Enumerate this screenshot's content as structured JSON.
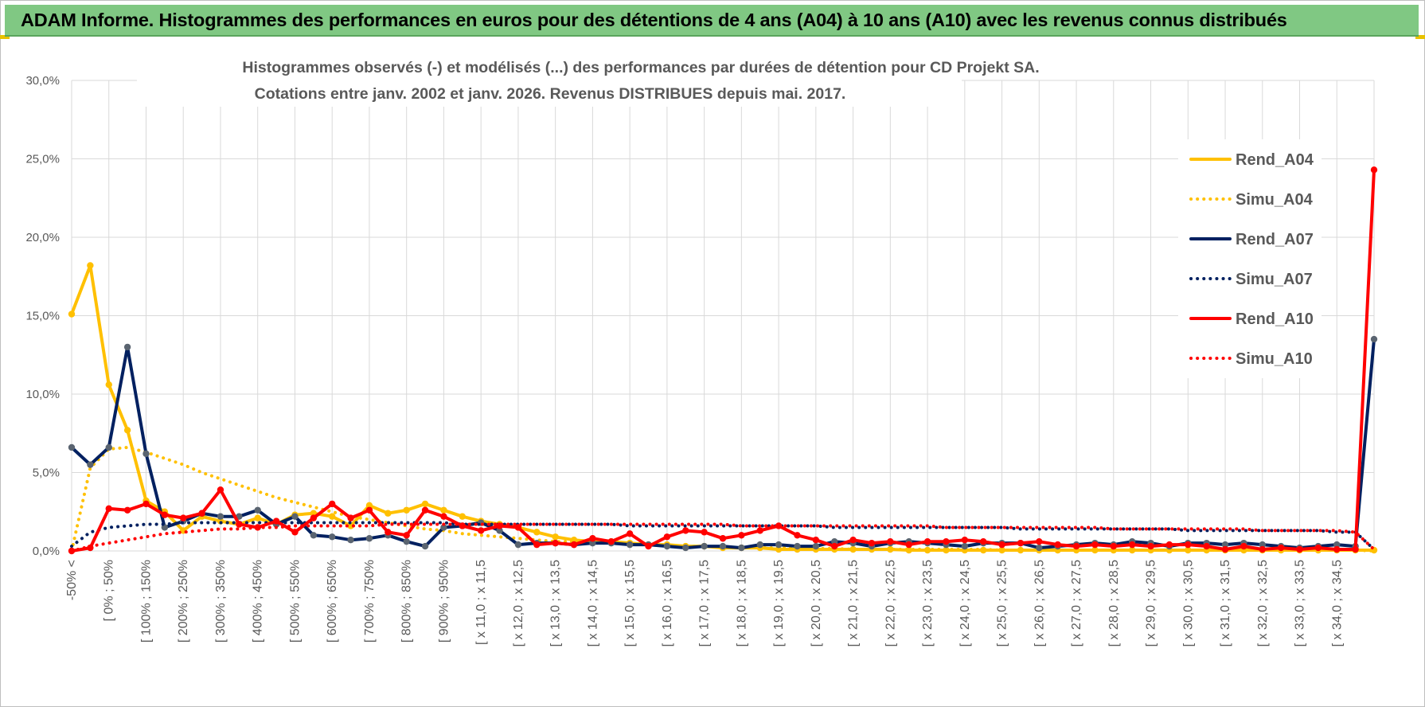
{
  "header": {
    "title": "ADAM Informe. Histogrammes des performances en euros pour des détentions de 4 ans (A04) à 10 ans (A10) avec les revenus connus distribués"
  },
  "colors": {
    "A04": "#FFC000",
    "A07": "#002060",
    "A07_marker": "#5A6470",
    "A10": "#FF0000",
    "grid": "#d9d9d9",
    "axis_text": "#595959"
  },
  "chart_data": {
    "type": "line",
    "title_line1": "Histogrammes observés (-) et modélisés (...) des performances par durées de détention pour CD Projekt SA.",
    "title_line2": "Cotations entre janv. 2002 et janv. 2026. Revenus DISTRIBUES depuis mai. 2017.",
    "xlabel": "",
    "ylabel": "",
    "ylim": [
      0,
      30
    ],
    "yticks": [
      "0,0%",
      "5,0%",
      "10,0%",
      "15,0%",
      "20,0%",
      "25,0%",
      "30,0%"
    ],
    "grid": true,
    "legend_position": "right",
    "x_tick_labels": [
      "-50% <",
      "[ 0% ; 50%",
      "[ 100% ; 150%",
      "[ 200% ; 250%",
      "[ 300% ; 350%",
      "[ 400% ; 450%",
      "[ 500% ; 550%",
      "[ 600% ; 650%",
      "[ 700% ; 750%",
      "[ 800% ; 850%",
      "[ 900% ; 950%",
      "[ x 11,0 ; x 11,5",
      "[ x 12,0 ; x 12,5",
      "[ x 13,0 ; x 13,5",
      "[ x 14,0 ; x 14,5",
      "[ x 15,0 ; x 15,5",
      "[ x 16,0 ; x 16,5",
      "[ x 17,0 ; x 17,5",
      "[ x 18,0 ; x 18,5",
      "[ x 19,0 ; x 19,5",
      "[ x 20,0 ; x 20,5",
      "[ x 21,0 ; x 21,5",
      "[ x 22,0 ; x 22,5",
      "[ x 23,0 ; x 23,5",
      "[ x 24,0 ; x 24,5",
      "[ x 25,0 ; x 25,5",
      "[ x 26,0 ; x 26,5",
      "[ x 27,0 ; x 27,5",
      "[ x 28,0 ; x 28,5",
      "[ x 29,0 ; x 29,5",
      "[ x 30,0 ; x 30,5",
      "[ x 31,0 ; x 31,5",
      "[ x 32,0 ; x 32,5",
      "[ x 33,0 ; x 33,5",
      "[ x 34,0 ; x 34,5"
    ],
    "series": [
      {
        "name": "Rend_A04",
        "style": "solid",
        "color_key": "A04",
        "values": [
          15.1,
          18.2,
          10.6,
          7.7,
          3.2,
          2.5,
          1.3,
          2.2,
          1.9,
          1.7,
          2.1,
          1.7,
          2.3,
          2.4,
          2.2,
          1.6,
          2.9,
          2.4,
          2.6,
          3.0,
          2.6,
          2.2,
          1.9,
          1.7,
          1.5,
          1.2,
          0.9,
          0.7,
          0.6,
          0.6,
          0.5,
          0.4,
          0.4,
          0.3,
          0.3,
          0.2,
          0.2,
          0.2,
          0.1,
          0.1,
          0.1,
          0.1,
          0.1,
          0.1,
          0.1,
          0.05,
          0.05,
          0.05,
          0.05,
          0.05,
          0.05,
          0.05,
          0.05,
          0.05,
          0.05,
          0.05,
          0.05,
          0.05,
          0.05,
          0.05,
          0.05,
          0.05,
          0.05,
          0.05,
          0.05,
          0.05,
          0.05,
          0.05,
          0.05,
          0.05,
          0.05
        ]
      },
      {
        "name": "Simu_A04",
        "style": "dotted",
        "color_key": "A04",
        "values": [
          0.0,
          5.3,
          6.5,
          6.6,
          6.3,
          5.9,
          5.5,
          5.0,
          4.6,
          4.2,
          3.8,
          3.4,
          3.1,
          2.8,
          2.5,
          2.2,
          2.0,
          1.8,
          1.6,
          1.4,
          1.3,
          1.1,
          1.0,
          0.9,
          0.8,
          0.7,
          0.6,
          0.6,
          0.5,
          0.5,
          0.4,
          0.4,
          0.3,
          0.3,
          0.3,
          0.2,
          0.2,
          0.2,
          0.2,
          0.2,
          0.15,
          0.15,
          0.1,
          0.1,
          0.1,
          0.1,
          0.1,
          0.1,
          0.1,
          0.1,
          0.05,
          0.05,
          0.05,
          0.05,
          0.05,
          0.05,
          0.05,
          0.05,
          0.05,
          0.05,
          0.05,
          0.05,
          0.05,
          0.05,
          0.05,
          0.05,
          0.05,
          0.05,
          0.05,
          0.05,
          0.0
        ]
      },
      {
        "name": "Rend_A07",
        "style": "solid",
        "color_key": "A07",
        "values": [
          6.6,
          5.5,
          6.6,
          13.0,
          6.2,
          1.5,
          1.9,
          2.4,
          2.2,
          2.2,
          2.6,
          1.7,
          2.2,
          1.0,
          0.9,
          0.7,
          0.8,
          1.0,
          0.6,
          0.3,
          1.5,
          1.6,
          1.8,
          1.3,
          0.4,
          0.5,
          0.5,
          0.4,
          0.5,
          0.5,
          0.4,
          0.4,
          0.3,
          0.2,
          0.3,
          0.3,
          0.2,
          0.4,
          0.4,
          0.3,
          0.3,
          0.6,
          0.5,
          0.3,
          0.5,
          0.6,
          0.5,
          0.4,
          0.3,
          0.5,
          0.5,
          0.5,
          0.2,
          0.3,
          0.4,
          0.5,
          0.4,
          0.6,
          0.5,
          0.3,
          0.5,
          0.5,
          0.4,
          0.5,
          0.4,
          0.3,
          0.2,
          0.3,
          0.4,
          0.3,
          13.5
        ]
      },
      {
        "name": "Simu_A07",
        "style": "dotted",
        "color_key": "A07",
        "values": [
          0.3,
          1.2,
          1.5,
          1.6,
          1.7,
          1.7,
          1.8,
          1.8,
          1.8,
          1.8,
          1.8,
          1.8,
          1.8,
          1.8,
          1.8,
          1.8,
          1.8,
          1.8,
          1.8,
          1.8,
          1.8,
          1.7,
          1.7,
          1.7,
          1.7,
          1.7,
          1.7,
          1.7,
          1.7,
          1.7,
          1.6,
          1.6,
          1.6,
          1.6,
          1.6,
          1.6,
          1.6,
          1.6,
          1.6,
          1.6,
          1.6,
          1.5,
          1.5,
          1.5,
          1.5,
          1.5,
          1.5,
          1.5,
          1.5,
          1.5,
          1.5,
          1.4,
          1.4,
          1.4,
          1.4,
          1.4,
          1.4,
          1.4,
          1.4,
          1.4,
          1.3,
          1.3,
          1.3,
          1.3,
          1.3,
          1.3,
          1.3,
          1.3,
          1.2,
          1.2,
          0.1
        ]
      },
      {
        "name": "Rend_A10",
        "style": "solid",
        "color_key": "A10",
        "values": [
          0.0,
          0.2,
          2.7,
          2.6,
          3.0,
          2.3,
          2.1,
          2.4,
          3.9,
          1.7,
          1.5,
          1.9,
          1.2,
          2.1,
          3.0,
          2.1,
          2.6,
          1.2,
          1.0,
          2.6,
          2.2,
          1.6,
          1.3,
          1.6,
          1.5,
          0.4,
          0.5,
          0.4,
          0.8,
          0.6,
          1.1,
          0.3,
          0.9,
          1.3,
          1.2,
          0.8,
          1.0,
          1.3,
          1.6,
          1.0,
          0.7,
          0.3,
          0.7,
          0.5,
          0.6,
          0.4,
          0.6,
          0.6,
          0.7,
          0.6,
          0.4,
          0.5,
          0.6,
          0.4,
          0.3,
          0.4,
          0.3,
          0.4,
          0.3,
          0.4,
          0.4,
          0.3,
          0.1,
          0.3,
          0.1,
          0.2,
          0.1,
          0.2,
          0.1,
          0.1,
          24.3
        ]
      },
      {
        "name": "Simu_A10",
        "style": "dotted",
        "color_key": "A10",
        "values": [
          0.0,
          0.3,
          0.5,
          0.7,
          0.9,
          1.1,
          1.2,
          1.3,
          1.4,
          1.4,
          1.5,
          1.5,
          1.6,
          1.6,
          1.6,
          1.6,
          1.6,
          1.7,
          1.7,
          1.7,
          1.7,
          1.7,
          1.7,
          1.7,
          1.7,
          1.7,
          1.7,
          1.7,
          1.7,
          1.7,
          1.7,
          1.7,
          1.7,
          1.7,
          1.7,
          1.7,
          1.6,
          1.6,
          1.6,
          1.6,
          1.6,
          1.6,
          1.6,
          1.6,
          1.6,
          1.6,
          1.6,
          1.5,
          1.5,
          1.5,
          1.5,
          1.5,
          1.5,
          1.5,
          1.5,
          1.5,
          1.4,
          1.4,
          1.4,
          1.4,
          1.4,
          1.4,
          1.4,
          1.4,
          1.3,
          1.3,
          1.3,
          1.3,
          1.3,
          1.2,
          0.1
        ]
      }
    ]
  }
}
